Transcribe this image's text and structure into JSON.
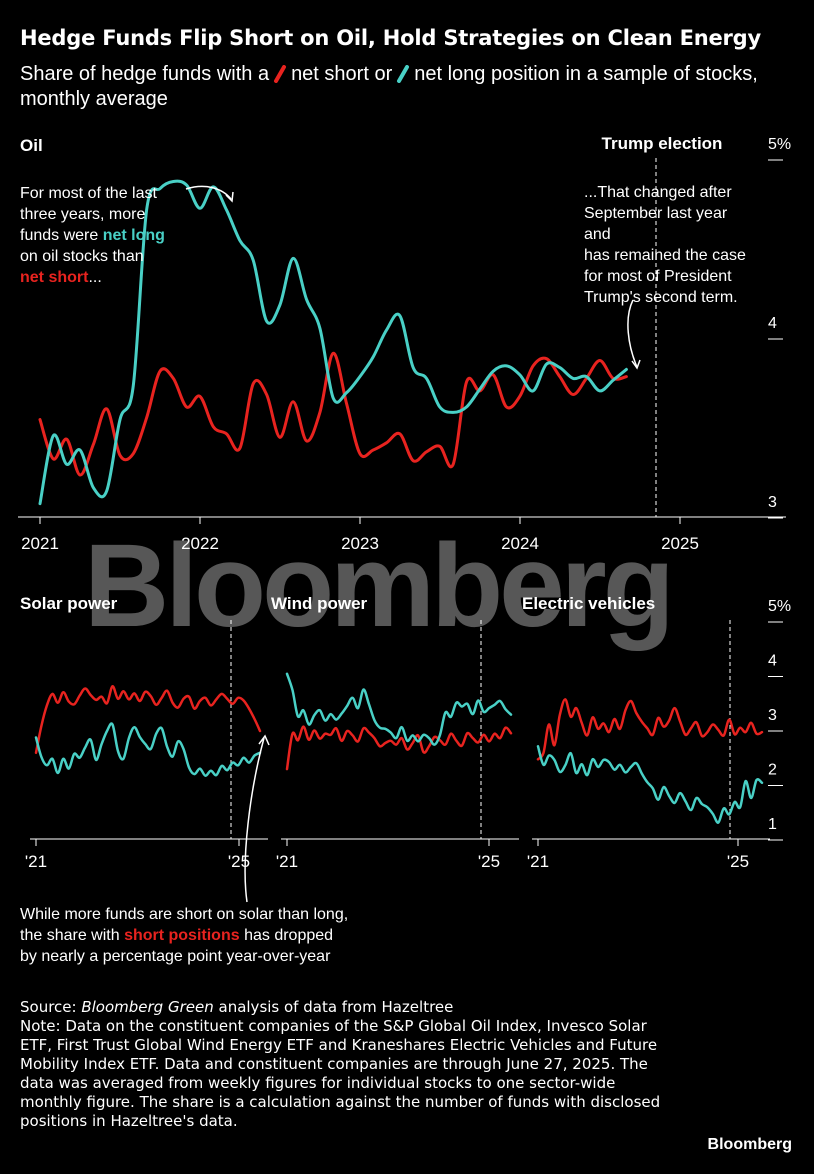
{
  "header": {
    "title": "Hedge Funds Flip Short on Oil, Hold Strategies on Clean Energy",
    "subtitle_1": "Share of hedge funds with a",
    "subtitle_2": "net short or",
    "subtitle_3": "net long position in a sample of stocks, monthly average"
  },
  "colors": {
    "short": "#e8231f",
    "long": "#49d0c6",
    "background": "#000000"
  },
  "watermark": "Bloomberg",
  "annotations": {
    "oil_left": {
      "l1": "For most of the last",
      "l2": "three years, more",
      "l3a": "funds were ",
      "l3b": "net long",
      "l4": "on oil stocks than",
      "l5a": "net short",
      "l5b": "..."
    },
    "oil_right": {
      "l1": "...That changed after",
      "l2": "September last year",
      "l3": "and",
      "l4": "has remained the case",
      "l5": "for most of President",
      "l6": "Trump's second term."
    },
    "solar": {
      "l1": "While more funds are short on solar than long,",
      "l2a": "the share with ",
      "l2b": "short positions",
      "l2c": " has dropped",
      "l3": "by nearly a percentage point year-over-year"
    }
  },
  "notes": {
    "source_prefix": "Source: ",
    "source_italic": "Bloomberg Green",
    "source_rest": " analysis of data from Hazeltree",
    "note": "Note: Data on the constituent companies of the S&P Global Oil Index, Invesco Solar ETF, First Trust Global Wind Energy ETF and Kraneshares Electric Vehicles and Future Mobility Index ETF. Data and constituent companies are through June 27, 2025. The data was averaged from weekly figures for individual stocks to one sector-wide monthly figure. The share is a calculation against the number of funds with disclosed positions in Hazeltree's data."
  },
  "branding": "Bloomberg",
  "chart_data": [
    {
      "type": "line",
      "title": "Oil",
      "x_start": 2021.0,
      "x_step": 0.0833,
      "xlim": [
        2021.0,
        2025.5
      ],
      "ylim": [
        3.0,
        5.0
      ],
      "y_ticks": [
        3,
        4,
        5
      ],
      "y_tick_labels": [
        "3",
        "4",
        "5%"
      ],
      "x_ticks": [
        2021,
        2022,
        2023,
        2024,
        2025
      ],
      "x_tick_labels": [
        "2021",
        "2022",
        "2023",
        "2024",
        "2025"
      ],
      "event": {
        "label": "Trump election",
        "x": 2024.85
      },
      "series": [
        {
          "name": "net short",
          "color": "#e8231f",
          "values": [
            3.55,
            3.33,
            3.44,
            3.24,
            3.41,
            3.61,
            3.35,
            3.36,
            3.56,
            3.82,
            3.78,
            3.62,
            3.68,
            3.51,
            3.47,
            3.39,
            3.75,
            3.69,
            3.45,
            3.65,
            3.43,
            3.59,
            3.92,
            3.64,
            3.36,
            3.38,
            3.42,
            3.47,
            3.32,
            3.37,
            3.4,
            3.3,
            3.76,
            3.71,
            3.8,
            3.62,
            3.68,
            3.85,
            3.89,
            3.79,
            3.69,
            3.78,
            3.88,
            3.78,
            3.79
          ]
        },
        {
          "name": "net long",
          "color": "#49d0c6",
          "values": [
            3.08,
            3.46,
            3.3,
            3.38,
            3.17,
            3.15,
            3.55,
            3.74,
            4.72,
            4.84,
            4.88,
            4.86,
            4.73,
            4.85,
            4.72,
            4.55,
            4.44,
            4.1,
            4.19,
            4.45,
            4.22,
            4.06,
            3.67,
            3.7,
            3.79,
            3.9,
            4.05,
            4.13,
            3.84,
            3.78,
            3.62,
            3.59,
            3.62,
            3.72,
            3.82,
            3.85,
            3.8,
            3.71,
            3.86,
            3.84,
            3.78,
            3.79,
            3.71,
            3.77,
            3.83
          ]
        }
      ]
    },
    {
      "type": "line",
      "title": "Solar power",
      "ylim": [
        1.0,
        5.0
      ],
      "y_ticks": [
        1,
        2,
        3,
        4,
        5
      ],
      "y_tick_labels": [
        "1",
        "2",
        "3",
        "4",
        "5%"
      ],
      "x_tick_labels": [
        "'21",
        "'25"
      ],
      "event": {
        "label": "Trump election",
        "x": 2024.85
      },
      "series": [
        {
          "name": "net short",
          "color": "#e8231f",
          "values": [
            2.6,
            3.1,
            3.47,
            3.68,
            3.52,
            3.71,
            3.54,
            3.49,
            3.65,
            3.78,
            3.66,
            3.57,
            3.63,
            3.51,
            3.82,
            3.59,
            3.73,
            3.58,
            3.69,
            3.55,
            3.72,
            3.64,
            3.48,
            3.61,
            3.74,
            3.52,
            3.43,
            3.59,
            3.63,
            3.41,
            3.55,
            3.61,
            3.47,
            3.58,
            3.68,
            3.59,
            3.5,
            3.61,
            3.56,
            3.41,
            3.22,
            3.0
          ]
        },
        {
          "name": "net long",
          "color": "#49d0c6",
          "values": [
            2.88,
            2.52,
            2.37,
            2.49,
            2.23,
            2.49,
            2.31,
            2.58,
            2.51,
            2.7,
            2.84,
            2.47,
            2.76,
            3.0,
            3.12,
            2.63,
            2.49,
            2.87,
            3.07,
            2.89,
            2.76,
            2.67,
            2.95,
            3.05,
            2.71,
            2.53,
            2.81,
            2.67,
            2.33,
            2.21,
            2.31,
            2.18,
            2.27,
            2.19,
            2.36,
            2.28,
            2.42,
            2.37,
            2.51,
            2.42,
            2.55,
            2.6
          ]
        }
      ]
    },
    {
      "type": "line",
      "title": "Wind power",
      "ylim": [
        1.0,
        5.0
      ],
      "y_ticks": [
        1,
        2,
        3,
        4,
        5
      ],
      "y_tick_labels": [
        "1",
        "2",
        "3",
        "4",
        "5%"
      ],
      "x_tick_labels": [
        "'21",
        "'25"
      ],
      "event": {
        "label": "Trump election",
        "x": 2024.85
      },
      "series": [
        {
          "name": "net short",
          "color": "#e8231f",
          "values": [
            2.3,
            2.95,
            2.83,
            3.08,
            2.84,
            3.01,
            2.86,
            2.95,
            2.93,
            3.05,
            2.82,
            3.0,
            2.92,
            2.81,
            3.05,
            2.97,
            2.87,
            2.72,
            2.78,
            2.82,
            2.75,
            2.87,
            2.66,
            2.78,
            2.92,
            2.61,
            2.72,
            2.89,
            2.83,
            2.75,
            2.95,
            2.82,
            2.73,
            2.96,
            2.87,
            2.79,
            2.93,
            2.81,
            2.95,
            2.87,
            3.06,
            2.96
          ]
        },
        {
          "name": "net long",
          "color": "#49d0c6",
          "values": [
            4.05,
            3.75,
            3.27,
            3.38,
            3.12,
            3.29,
            3.38,
            3.19,
            3.31,
            3.21,
            3.32,
            3.46,
            3.61,
            3.42,
            3.76,
            3.49,
            3.2,
            3.06,
            3.04,
            2.97,
            2.87,
            3.07,
            2.82,
            2.92,
            2.81,
            2.93,
            2.87,
            2.75,
            2.93,
            3.34,
            3.26,
            3.52,
            3.45,
            3.5,
            3.31,
            3.56,
            3.35,
            3.42,
            3.48,
            3.55,
            3.4,
            3.3
          ]
        }
      ]
    },
    {
      "type": "line",
      "title": "Electric vehicles",
      "ylim": [
        1.0,
        5.0
      ],
      "y_ticks": [
        1,
        2,
        3,
        4,
        5
      ],
      "y_tick_labels": [
        "1",
        "2",
        "3",
        "4",
        "5%"
      ],
      "x_tick_labels": [
        "'21",
        "'25"
      ],
      "event": {
        "label": "Trump election",
        "x": 2024.85
      },
      "series": [
        {
          "name": "net short",
          "color": "#e8231f",
          "values": [
            2.48,
            2.6,
            3.12,
            2.74,
            3.3,
            3.58,
            3.26,
            3.42,
            3.15,
            2.92,
            3.25,
            3.04,
            3.14,
            2.98,
            3.22,
            3.04,
            3.38,
            3.55,
            3.33,
            3.17,
            3.05,
            2.93,
            3.24,
            3.08,
            3.19,
            3.42,
            3.18,
            2.93,
            3.05,
            3.16,
            2.91,
            2.98,
            3.12,
            3.02,
            2.92,
            3.21,
            2.94,
            3.06,
            2.98,
            3.15,
            2.95,
            2.98
          ]
        },
        {
          "name": "net long",
          "color": "#49d0c6",
          "values": [
            2.72,
            2.38,
            2.55,
            2.47,
            2.25,
            2.37,
            2.59,
            2.23,
            2.39,
            2.19,
            2.48,
            2.34,
            2.47,
            2.43,
            2.29,
            2.38,
            2.24,
            2.34,
            2.41,
            2.22,
            2.06,
            1.95,
            1.74,
            1.97,
            1.81,
            1.68,
            1.86,
            1.71,
            1.55,
            1.77,
            1.66,
            1.6,
            1.48,
            1.32,
            1.58,
            1.47,
            1.7,
            1.6,
            2.08,
            1.77,
            2.1,
            2.05
          ]
        }
      ]
    }
  ]
}
